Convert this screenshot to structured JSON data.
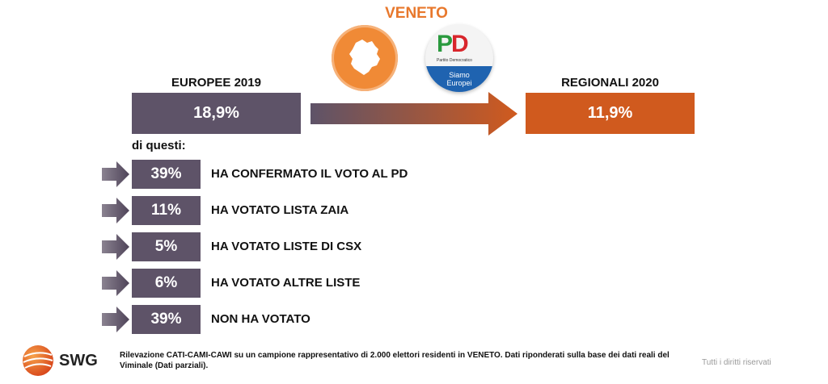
{
  "header": {
    "region": "VENETO",
    "left_label": "EUROPEE 2019",
    "right_label": "REGIONALI 2020"
  },
  "logos": {
    "pd_letters_p": "P",
    "pd_letters_d": "D",
    "pd_party_name": "Partito Democratico",
    "pd_banner_line1": "Siamo",
    "pd_banner_line2": "Europei"
  },
  "comparison": {
    "europee_value": "18,9%",
    "regionali_value": "11,9%"
  },
  "breakdown": {
    "intro": "di questi:",
    "rows": [
      {
        "pct": "39%",
        "label": "HA CONFERMATO IL VOTO AL PD"
      },
      {
        "pct": "11%",
        "label": "HA VOTATO LISTA ZAIA"
      },
      {
        "pct": "5%",
        "label": "HA VOTATO LISTE DI CSX"
      },
      {
        "pct": "6%",
        "label": "HA VOTATO ALTRE LISTE"
      },
      {
        "pct": "39%",
        "label": "NON HA VOTATO"
      }
    ]
  },
  "footer": {
    "brand": "SWG",
    "note": "Rilevazione CATI-CAMI-CAWI su un campione rappresentativo di 2.000 elettori residenti in VENETO. Dati riponderati sulla base dei dati reali del Viminale (Dati parziali).",
    "rights": "Tutti i diritti riservati"
  },
  "colors": {
    "accent_orange": "#d05a1e",
    "title_orange": "#e8782c",
    "purple_gray": "#5e5368",
    "pd_green": "#2a9a3e",
    "pd_red": "#d8262c",
    "pd_blue": "#1f63b0"
  },
  "icons": [
    "veneto-region-icon",
    "pd-logo-icon",
    "gradient-arrow-icon",
    "row-arrow-icon",
    "swg-logo-icon"
  ]
}
